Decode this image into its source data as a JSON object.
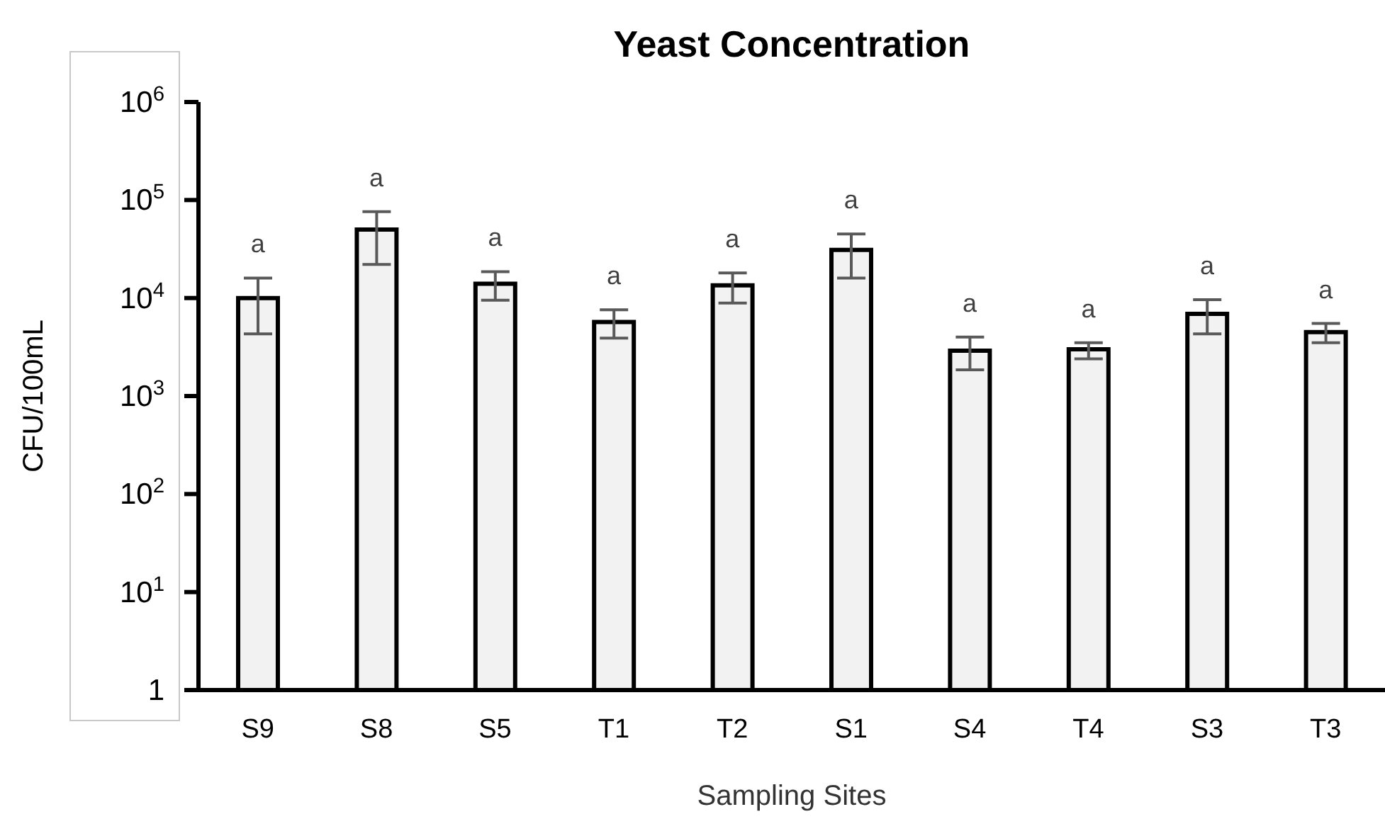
{
  "chart_data": {
    "type": "bar",
    "title": "Yeast Concentration",
    "xlabel": "Sampling Sites",
    "ylabel": "CFU/100mL",
    "categories": [
      "S9",
      "S8",
      "S5",
      "T1",
      "T2",
      "S1",
      "S4",
      "T4",
      "S3",
      "T3"
    ],
    "values": [
      10000,
      50000,
      14000,
      5700,
      13500,
      31000,
      2900,
      3000,
      6900,
      4500
    ],
    "errors": [
      [
        4300,
        16000
      ],
      [
        22000,
        76000
      ],
      [
        9500,
        18600
      ],
      [
        3900,
        7600
      ],
      [
        8900,
        18000
      ],
      [
        16000,
        45000
      ],
      [
        1850,
        4000
      ],
      [
        2400,
        3500
      ],
      [
        4300,
        9600
      ],
      [
        3500,
        5500
      ]
    ],
    "color": "#f2f2f2",
    "log": true,
    "ylim": [
      1,
      1000000
    ],
    "yticks": [
      {
        "value": 1,
        "label": "1"
      },
      {
        "value": 10,
        "label": "10$^{1}$"
      },
      {
        "value": 100,
        "label": "10$^{2}$"
      },
      {
        "value": 1000,
        "label": "10$^{3}$"
      },
      {
        "value": 10000,
        "label": "10$^{4}$"
      },
      {
        "value": 100000,
        "label": "10$^{5}$"
      },
      {
        "value": 1000000,
        "label": "10$^{6}$"
      }
    ],
    "grid": false,
    "legend": false,
    "annotations": [
      "a",
      "a",
      "a",
      "a",
      "a",
      "a",
      "a",
      "a",
      "a",
      "a"
    ]
  }
}
